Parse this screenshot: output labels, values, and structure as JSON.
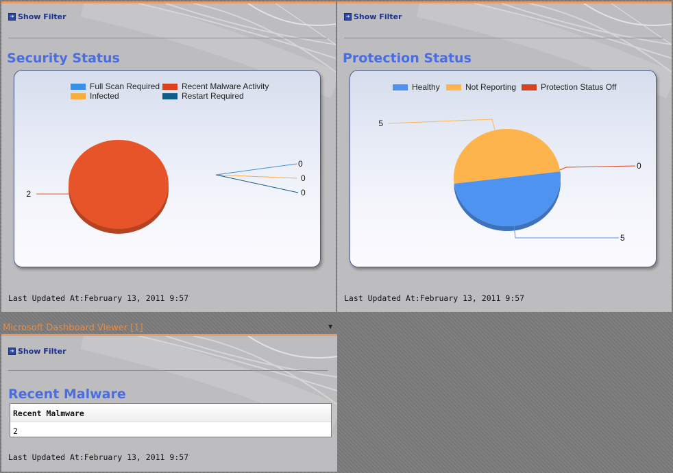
{
  "show_filter_label": "Show Filter",
  "colors": {
    "title": "#4a6de0",
    "full_scan_required": "#3a8ee6",
    "recent_malware_activity": "#e8542a",
    "infected": "#f7ae3c",
    "restart_required": "#105b8a",
    "healthy": "#4f93f0",
    "not_reporting": "#fdb44d",
    "protection_status_off": "#d9421c"
  },
  "security_panel": {
    "title": "Security Status",
    "last_updated": "Last Updated At:February 13, 2011 9:57",
    "legend": [
      "Full Scan Required",
      "Recent Malware Activity",
      "Infected",
      "Restart Required"
    ]
  },
  "protection_panel": {
    "title": "Protection Status",
    "last_updated": "Last Updated At:February 13, 2011 9:57",
    "legend": [
      "Healthy",
      "Not Reporting",
      "Protection Status Off"
    ]
  },
  "viewer": {
    "header": "Microsoft Dashboard Viewer [1]",
    "dropdown_icon": "chevron-down-icon"
  },
  "malware_panel": {
    "title": "Recent Malware",
    "table_header": "Recent Malmware",
    "table_value": "2",
    "last_updated": "Last Updated At:February 13, 2011 9:57"
  },
  "chart_data": [
    {
      "type": "pie",
      "title": "Security Status",
      "categories": [
        "Full Scan Required",
        "Recent Malware Activity",
        "Infected",
        "Restart Required"
      ],
      "values": [
        0,
        2,
        0,
        0
      ],
      "labels": [
        "0",
        "2",
        "0",
        "0"
      ],
      "legend": "top"
    },
    {
      "type": "pie",
      "title": "Protection Status",
      "categories": [
        "Healthy",
        "Not Reporting",
        "Protection Status Off"
      ],
      "values": [
        5,
        5,
        0
      ],
      "labels": [
        "5",
        "5",
        "0"
      ],
      "legend": "top"
    }
  ]
}
